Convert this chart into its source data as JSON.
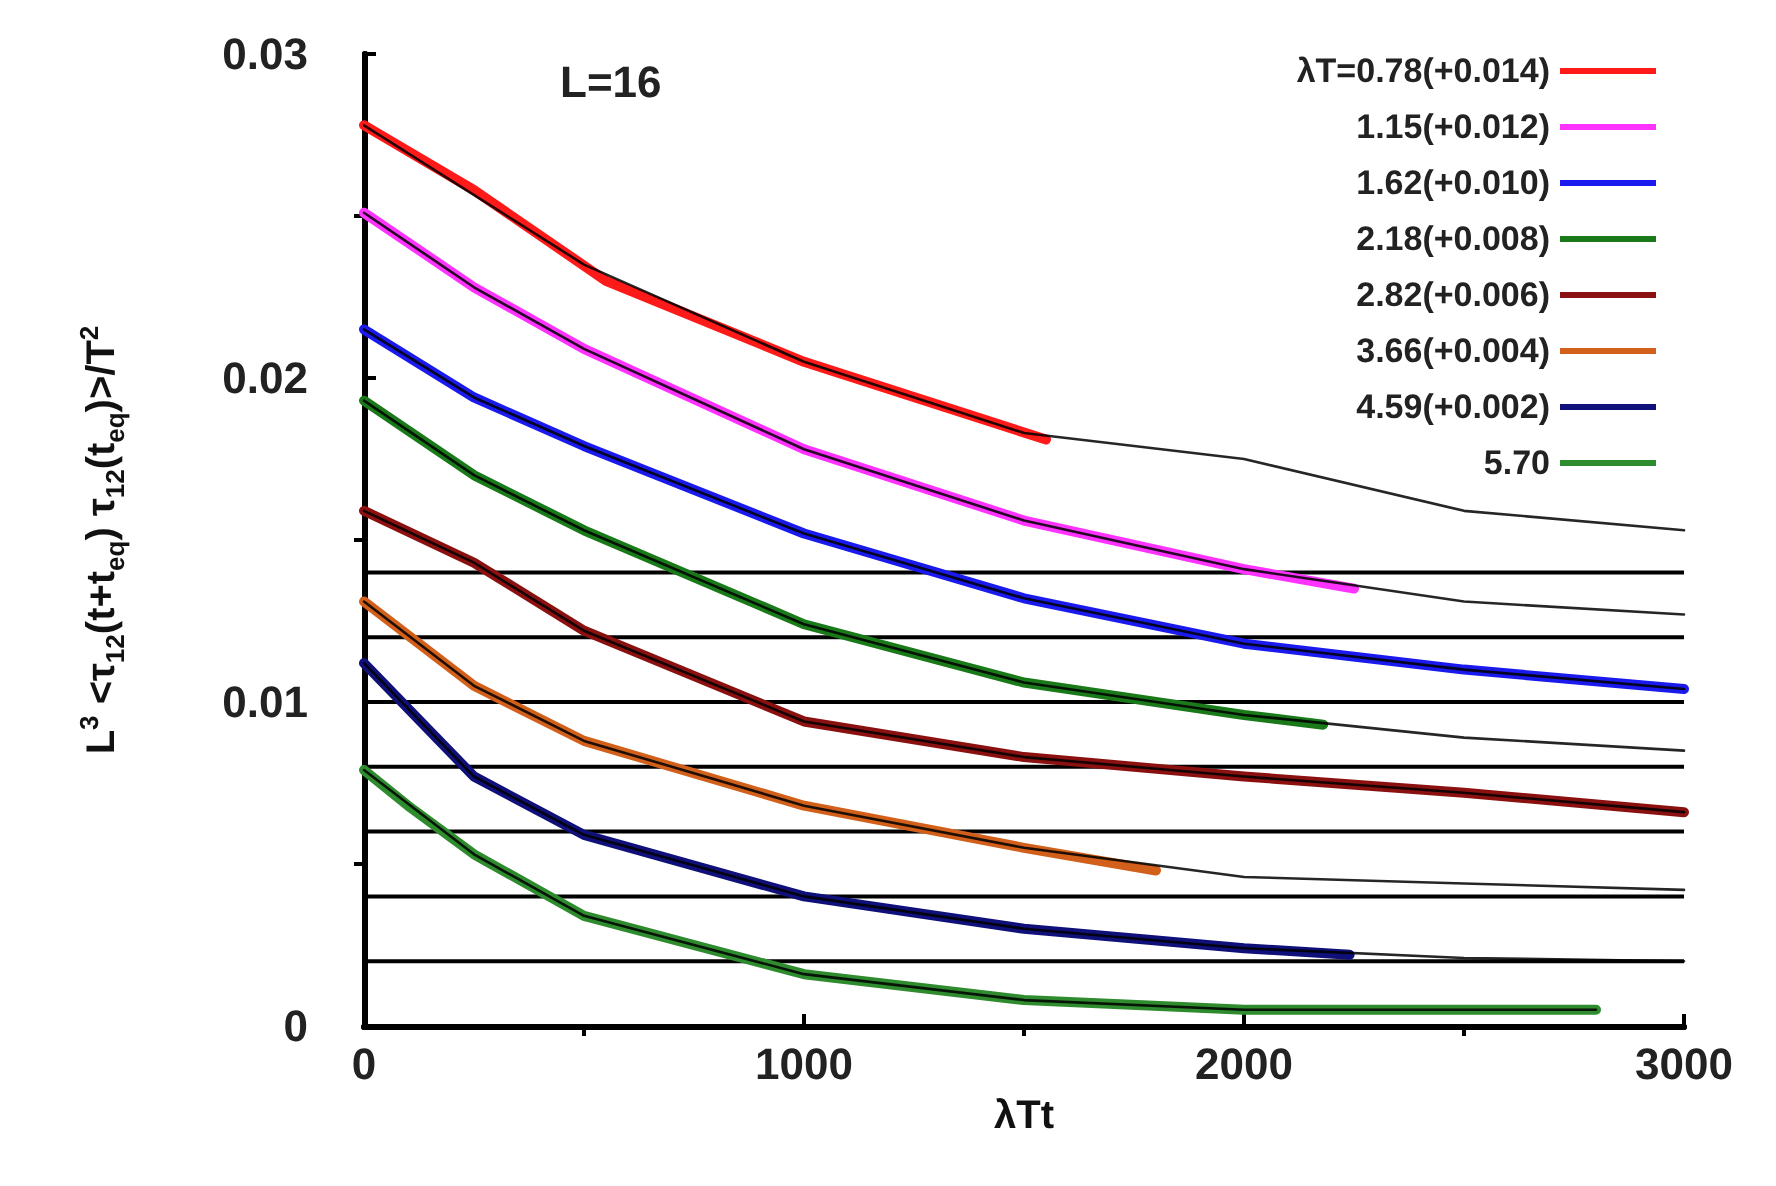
{
  "chart_data": {
    "type": "line",
    "xlabel": "λTt",
    "ylabel": "L$^{3}$ <τ$_{12}$(t+t$_{eq}$) τ$_{12}$(t$_{eq}$)>/T$^{2}$",
    "annotations": [
      "L=16"
    ],
    "xlim": [
      0,
      3000
    ],
    "xticks": [
      0,
      1000,
      2000,
      3000
    ],
    "ylim": [
      0,
      0.03
    ],
    "yticks": [
      0,
      0.01,
      0.02,
      0.03
    ],
    "grid": false,
    "legend": "top right",
    "marker": "none",
    "line_style": "solid",
    "series": [
      {
        "name": "λT=0.78(+0.014)",
        "color": "#ff1a1a",
        "x": [
          0,
          250,
          550,
          1000,
          1550
        ],
        "values": [
          0.0278,
          0.0258,
          0.023,
          0.0205,
          0.0181
        ]
      },
      {
        "name": "1.15(+0.012)",
        "color": "#ff33ff",
        "x": [
          0,
          250,
          500,
          1000,
          1500,
          2000,
          2250
        ],
        "values": [
          0.0251,
          0.0228,
          0.0209,
          0.0178,
          0.0156,
          0.0141,
          0.0135
        ]
      },
      {
        "name": "1.62(+0.010)",
        "color": "#1a1aee",
        "x": [
          0,
          250,
          500,
          1000,
          1500,
          2000,
          2500,
          3000
        ],
        "values": [
          0.0215,
          0.0194,
          0.0179,
          0.0152,
          0.0132,
          0.0118,
          0.011,
          0.0104
        ]
      },
      {
        "name": "2.18(+0.008)",
        "color": "#1a7a1a",
        "x": [
          0,
          250,
          500,
          1000,
          1500,
          2000,
          2180
        ],
        "values": [
          0.0193,
          0.017,
          0.0153,
          0.0124,
          0.0106,
          0.0096,
          0.0093
        ]
      },
      {
        "name": "2.82(+0.006)",
        "color": "#8b1010",
        "x": [
          0,
          250,
          500,
          1000,
          1500,
          2000,
          2500,
          3000
        ],
        "values": [
          0.0159,
          0.0143,
          0.0122,
          0.0094,
          0.0083,
          0.0077,
          0.0072,
          0.0066
        ]
      },
      {
        "name": "3.66(+0.004)",
        "color": "#d2601a",
        "x": [
          0,
          250,
          500,
          1000,
          1500,
          1800
        ],
        "values": [
          0.0131,
          0.0105,
          0.0088,
          0.0068,
          0.0055,
          0.0048
        ]
      },
      {
        "name": "4.59(+0.002)",
        "color": "#10107a",
        "x": [
          0,
          250,
          500,
          1000,
          1500,
          2000,
          2240
        ],
        "values": [
          0.0112,
          0.0077,
          0.0059,
          0.004,
          0.003,
          0.0024,
          0.0022
        ]
      },
      {
        "name": "5.70",
        "color": "#2e8b2e",
        "x": [
          0,
          100,
          250,
          500,
          1000,
          1500,
          2000,
          2500,
          2800
        ],
        "values": [
          0.0079,
          0.0068,
          0.0053,
          0.0034,
          0.0016,
          0.0008,
          0.0005,
          0.0005,
          0.0005
        ]
      },
      {
        "color": "#000000",
        "x": [
          0,
          500,
          1000,
          1500,
          2000,
          2500,
          3000
        ],
        "values": [
          0.0278,
          0.0235,
          0.0205,
          0.0183,
          0.0175,
          0.0159,
          0.0153
        ]
      },
      {
        "color": "#000000",
        "x": [
          0,
          250,
          500,
          1000,
          1500,
          2000,
          2500,
          3000
        ],
        "values": [
          0.0251,
          0.0228,
          0.0209,
          0.0178,
          0.0156,
          0.0141,
          0.0131,
          0.0127
        ]
      },
      {
        "color": "#000000",
        "x": [
          0,
          250,
          500,
          1000,
          1500,
          2000,
          2500,
          3000
        ],
        "values": [
          0.0215,
          0.0194,
          0.0179,
          0.0152,
          0.0132,
          0.0118,
          0.011,
          0.0104
        ]
      },
      {
        "color": "#000000",
        "x": [
          0,
          250,
          500,
          1000,
          1500,
          2000,
          2500,
          3000
        ],
        "values": [
          0.0193,
          0.017,
          0.0153,
          0.0124,
          0.0106,
          0.0096,
          0.0089,
          0.0085
        ]
      },
      {
        "color": "#000000",
        "x": [
          0,
          250,
          500,
          1000,
          1500,
          2000,
          2500,
          3000
        ],
        "values": [
          0.0159,
          0.0143,
          0.0122,
          0.0094,
          0.0083,
          0.0077,
          0.0072,
          0.0066
        ]
      },
      {
        "color": "#000000",
        "x": [
          0,
          250,
          500,
          1000,
          1500,
          2000,
          2500,
          3000
        ],
        "values": [
          0.0131,
          0.0105,
          0.0088,
          0.0068,
          0.0055,
          0.0046,
          0.0044,
          0.0042
        ]
      },
      {
        "color": "#000000",
        "x": [
          0,
          250,
          500,
          1000,
          1500,
          2000,
          2500,
          3000
        ],
        "values": [
          0.0112,
          0.0077,
          0.0059,
          0.004,
          0.003,
          0.0024,
          0.0021,
          0.002
        ]
      },
      {
        "color": "#000000",
        "x": [
          0,
          250,
          500,
          1000,
          1500,
          2000,
          2500,
          2800
        ],
        "values": [
          0.0079,
          0.0053,
          0.0034,
          0.0016,
          0.0008,
          0.0005,
          0.0005,
          0.0005
        ]
      }
    ],
    "ref_lines": [
      {
        "axis": "y",
        "value": 0.014,
        "color": "#000000"
      },
      {
        "axis": "y",
        "value": 0.012,
        "color": "#000000"
      },
      {
        "axis": "y",
        "value": 0.01,
        "color": "#000000"
      },
      {
        "axis": "y",
        "value": 0.008,
        "color": "#000000"
      },
      {
        "axis": "y",
        "value": 0.006,
        "color": "#000000"
      },
      {
        "axis": "y",
        "value": 0.004,
        "color": "#000000"
      },
      {
        "axis": "y",
        "value": 0.002,
        "color": "#000000"
      }
    ]
  }
}
